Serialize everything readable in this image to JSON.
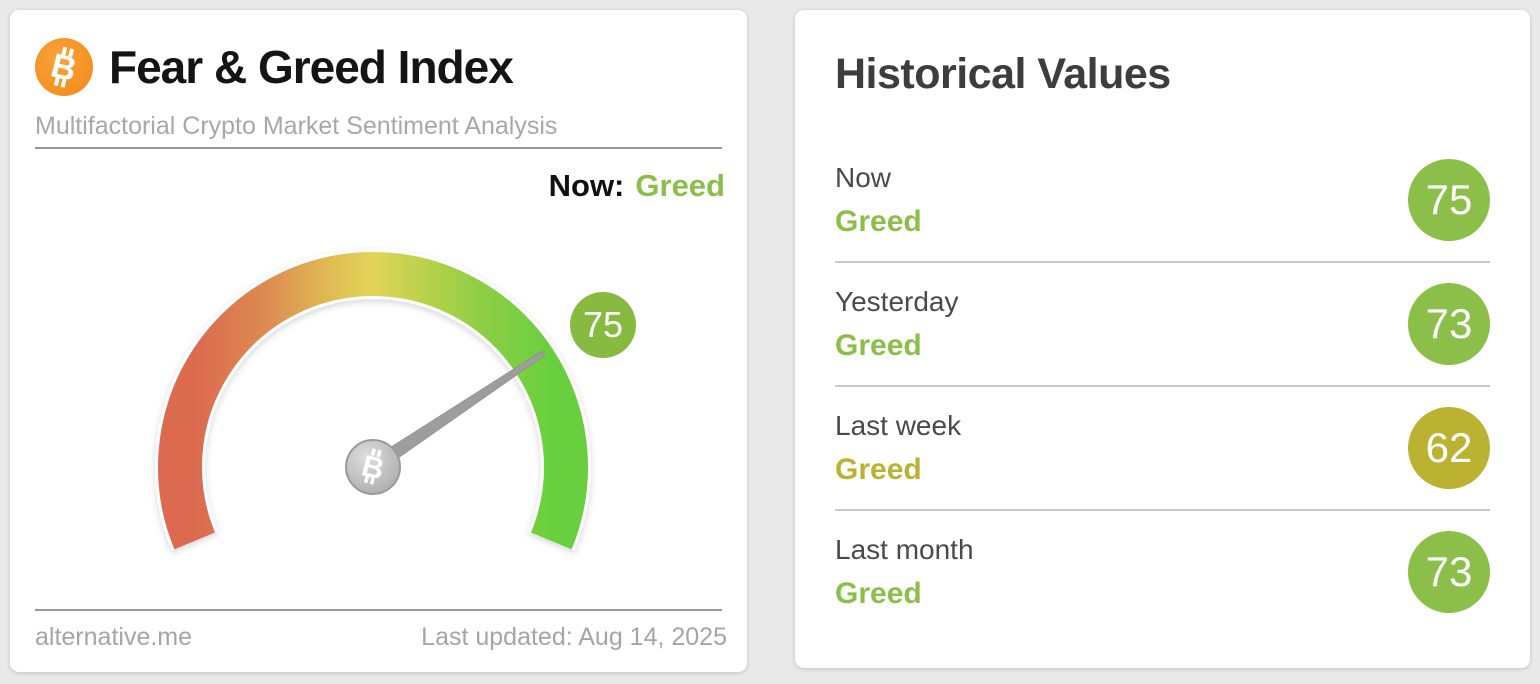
{
  "page_background": "#e9e9e9",
  "left_card": {
    "title": "Fear & Greed Index",
    "subtitle": "Multifactorial Crypto Market Sentiment Analysis",
    "now_label": "Now:",
    "source": "alternative.me",
    "last_updated": "Last updated: Aug 14, 2025",
    "bitcoin_icon_color": "#f7941d"
  },
  "chart_data": {
    "type": "gauge",
    "title": "Fear & Greed Index",
    "value": 75,
    "classification": "Greed",
    "range": [
      0,
      100
    ],
    "arc_span_degrees": 225,
    "arc_gradient_colors": [
      "#db6a4f",
      "#dd8b51",
      "#e2d457",
      "#bdd24d",
      "#68d03e"
    ],
    "value_badge_color": "#86ba40",
    "needle_color": "#9d9d9d",
    "historical": [
      {
        "label": "Now",
        "classification": "Greed",
        "value": 75,
        "badge_color": "#8cbf4a"
      },
      {
        "label": "Yesterday",
        "classification": "Greed",
        "value": 73,
        "badge_color": "#8cbf4a"
      },
      {
        "label": "Last week",
        "classification": "Greed",
        "value": 62,
        "badge_color": "#bcb232"
      },
      {
        "label": "Last month",
        "classification": "Greed",
        "value": 73,
        "badge_color": "#8cbf4a"
      }
    ]
  },
  "historical_card": {
    "title": "Historical Values"
  },
  "colors": {
    "greed_green": "#8cbf4a",
    "greed_olive": "#bcb232",
    "title_dark": "#3d3d3d",
    "muted_gray": "#a5a5a5"
  }
}
